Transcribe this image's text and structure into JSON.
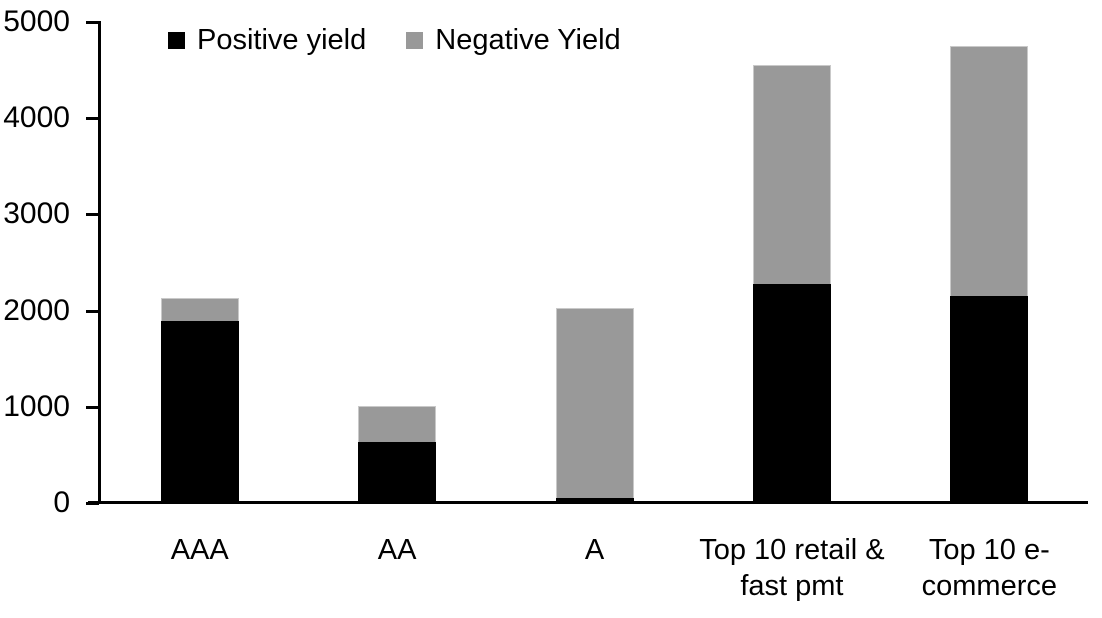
{
  "chart_data": {
    "type": "bar",
    "stacked": true,
    "title": "",
    "xlabel": "",
    "ylabel": "",
    "grid": false,
    "legend_position": "top",
    "categories": [
      "AAA",
      "AA",
      "A",
      "Top 10 retail & fast pmt",
      "Top 10 e-commerce"
    ],
    "series": [
      {
        "name": "Positive yield",
        "color": "#000000",
        "values": [
          1890,
          630,
          50,
          2280,
          2150
        ]
      },
      {
        "name": "Negative Yield",
        "color": "#999999",
        "values": [
          240,
          370,
          1980,
          2280,
          2600
        ]
      }
    ],
    "ylim": [
      0,
      5000
    ],
    "yticks": [
      0,
      1000,
      2000,
      3000,
      4000,
      5000
    ]
  },
  "colors": {
    "axis": "#000000",
    "background": "#ffffff",
    "positive": "#000000",
    "negative": "#999999"
  }
}
